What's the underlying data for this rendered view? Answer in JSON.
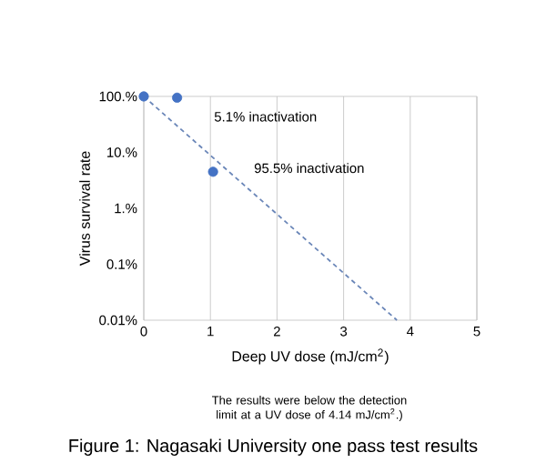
{
  "chart_data": {
    "type": "scatter",
    "title": "Figure 1:  Nagasaki University one pass test results",
    "xlabel": "Deep UV dose (mJ/cm$^{2}$)",
    "ylabel": "Virus survival rate",
    "xlim": [
      0,
      5
    ],
    "xticks": [
      0,
      1,
      2,
      3,
      4,
      5
    ],
    "ylim": [
      0.01,
      100
    ],
    "yticks": [
      {
        "value": 0.01,
        "label": "0.01%"
      },
      {
        "value": 0.1,
        "label": "0.1%"
      },
      {
        "value": 1,
        "label": "1.%"
      },
      {
        "value": 10,
        "label": "10.%"
      },
      {
        "value": 100,
        "label": "100.%"
      }
    ],
    "log": "y",
    "grid": "x",
    "marker": "circle",
    "series": [
      {
        "color": "#4472c4",
        "x": [
          0,
          0.5,
          1.04
        ],
        "values": [
          100,
          94.9,
          4.5
        ]
      },
      {
        "type": "line",
        "color": "#6a86b8",
        "line_style": "dashed",
        "marker": "none",
        "x": [
          0,
          3.8
        ],
        "values": [
          100,
          0.01
        ]
      }
    ],
    "annotations": [
      "5.1% inactivation",
      "95.5% inactivation",
      "The results were below the detection limit at a UV dose of 4.14 mJ/cm$^{2}$.)"
    ]
  }
}
